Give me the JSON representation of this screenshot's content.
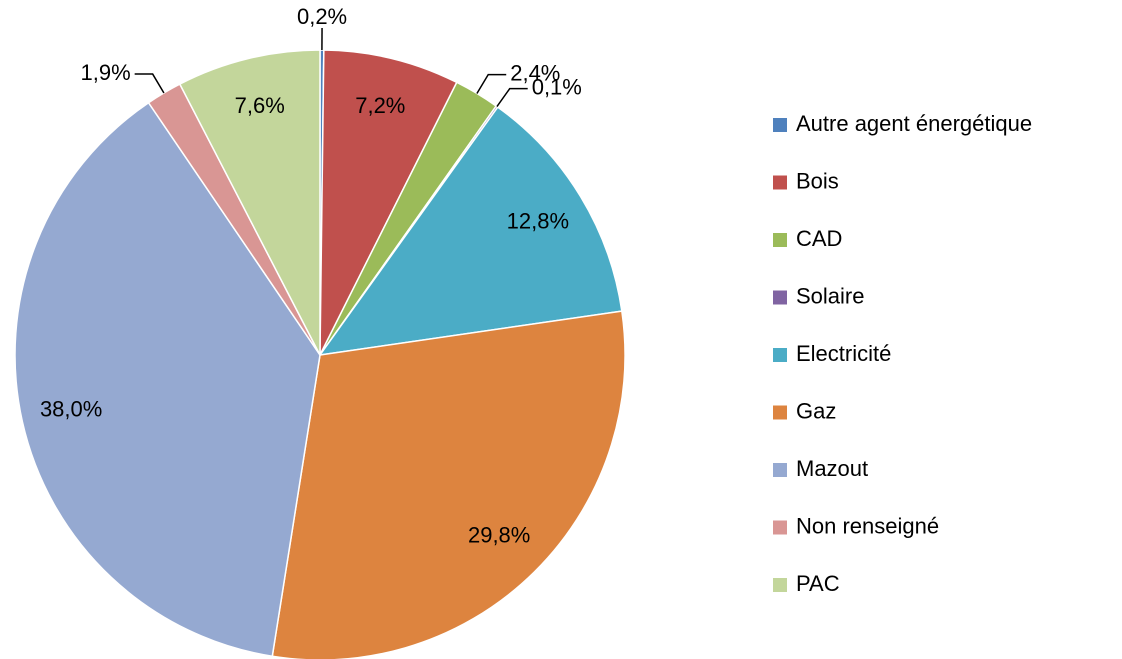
{
  "chart_data": {
    "type": "pie",
    "categories": [
      "Autre agent énergétique",
      "Bois",
      "CAD",
      "Solaire",
      "Electricité",
      "Gaz",
      "Mazout",
      "Non renseigné",
      "PAC"
    ],
    "values": [
      0.2,
      7.2,
      2.4,
      0.1,
      12.8,
      29.8,
      38.0,
      1.9,
      7.6
    ],
    "value_labels": [
      "0,2%",
      "7,2%",
      "2,4%",
      "0,1%",
      "12,8%",
      "29,8%",
      "38,0%",
      "1,9%",
      "7,6%"
    ],
    "colors": [
      "#4f81bd",
      "#c0504d",
      "#9bbb59",
      "#8064a2",
      "#4bacc6",
      "#dd843f",
      "#95a9d1",
      "#d99694",
      "#c3d69b"
    ],
    "legend": "right"
  }
}
